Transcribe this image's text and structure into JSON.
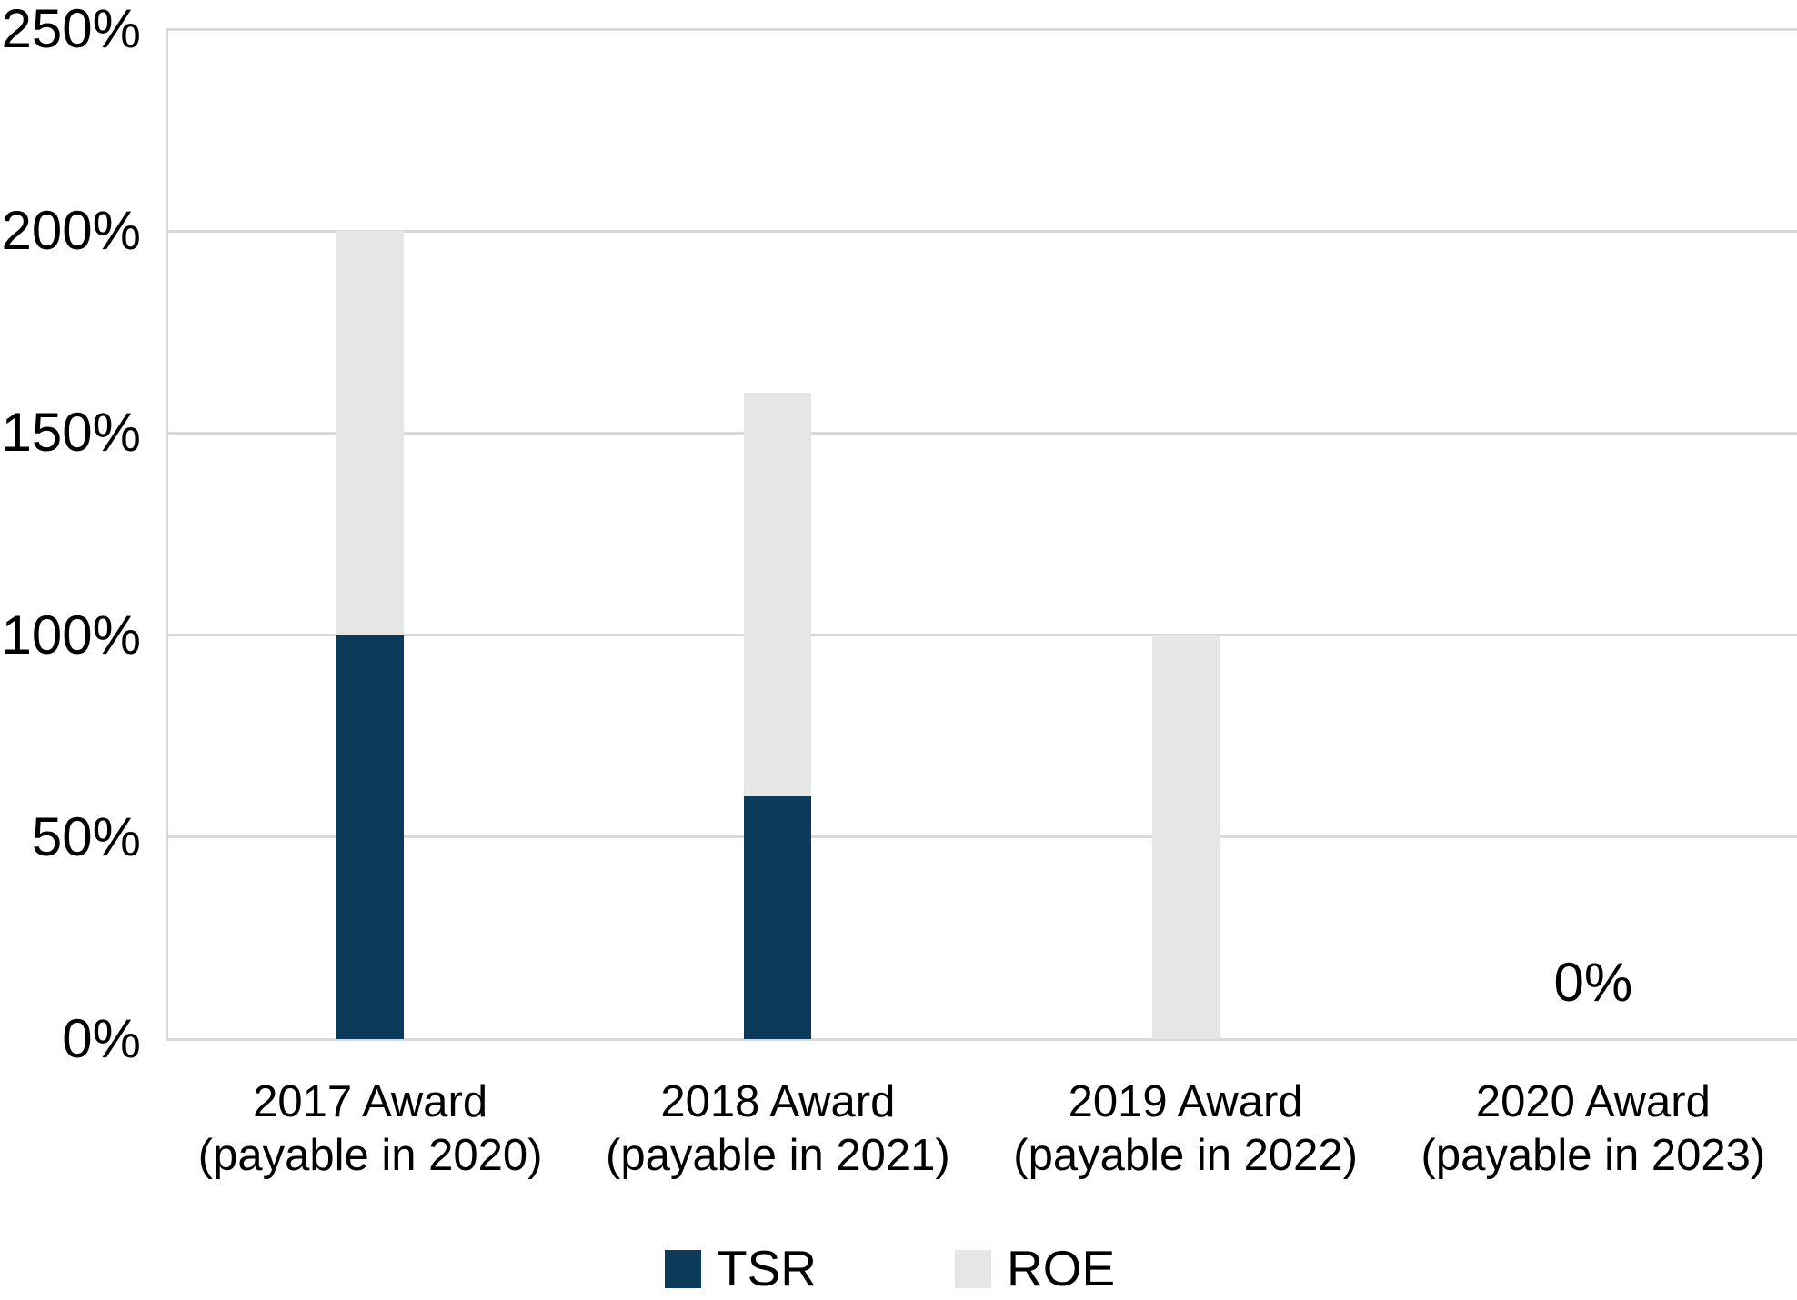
{
  "chart_data": {
    "type": "bar",
    "stacked": true,
    "title": "",
    "categories": [
      "2017 Award\n(payable in 2020)",
      "2018 Award\n(payable in 2021)",
      "2019 Award\n(payable in 2022)",
      "2020 Award\n(payable in 2023)"
    ],
    "series": [
      {
        "name": "TSR",
        "color": "#0b3a5b",
        "values": [
          100,
          60,
          0,
          0
        ]
      },
      {
        "name": "ROE",
        "color": "#e6e6e6",
        "values": [
          100,
          100,
          100,
          0
        ]
      }
    ],
    "y_axis": {
      "min": 0,
      "max": 250,
      "step": 50,
      "tick_labels": [
        "0%",
        "50%",
        "100%",
        "150%",
        "200%",
        "250%"
      ],
      "unit": "%"
    },
    "annotations": [
      {
        "category_index": 3,
        "text": "0%"
      }
    ],
    "legend": {
      "position": "bottom",
      "entries": [
        "TSR",
        "ROE"
      ]
    },
    "grid": true,
    "gridline_color": "#d9d9d9",
    "axis_line_color": "#d9d9d9",
    "text_color": "#000000",
    "background": "#ffffff"
  }
}
